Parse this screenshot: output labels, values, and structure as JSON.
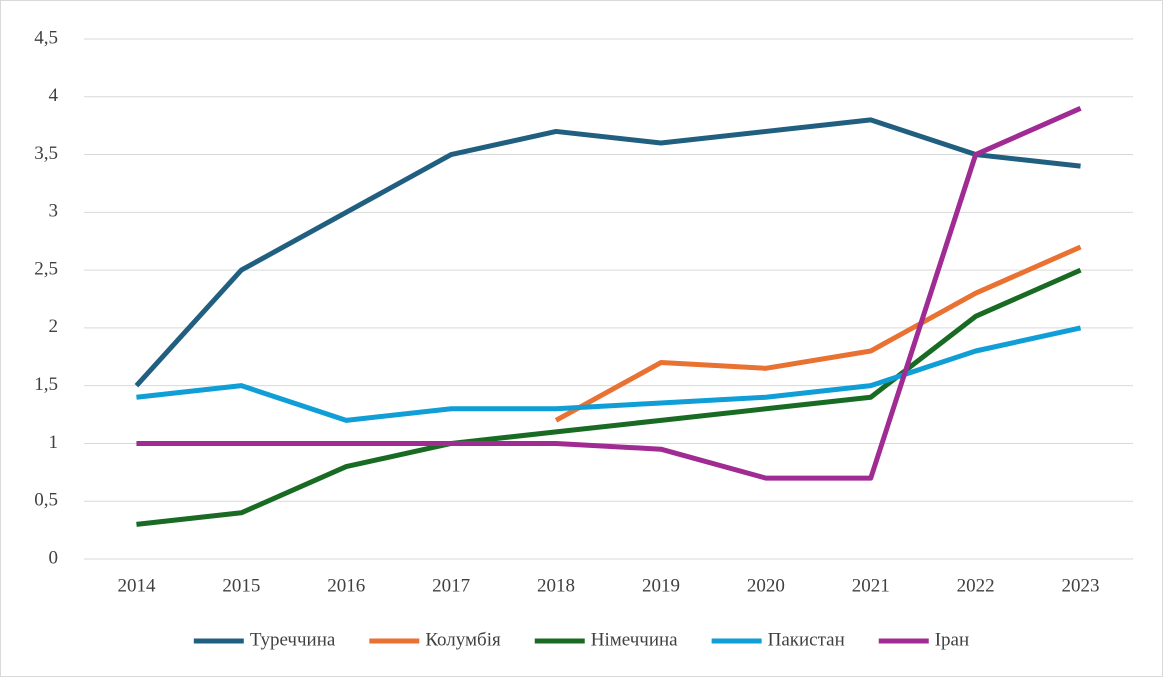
{
  "chart_data": {
    "type": "line",
    "categories": [
      "2014",
      "2015",
      "2016",
      "2017",
      "2018",
      "2019",
      "2020",
      "2021",
      "2022",
      "2023"
    ],
    "series": [
      {
        "name": "Туреччина",
        "color": "#215f80",
        "values": [
          1.5,
          2.5,
          3.0,
          3.5,
          3.7,
          3.6,
          3.7,
          3.8,
          3.5,
          3.4
        ]
      },
      {
        "name": "Колумбія",
        "color": "#e97132",
        "values": [
          null,
          null,
          null,
          null,
          1.2,
          1.7,
          1.65,
          1.8,
          2.3,
          2.7
        ]
      },
      {
        "name": "Німеччина",
        "color": "#196b24",
        "values": [
          0.3,
          0.4,
          0.8,
          1.0,
          1.1,
          1.2,
          1.3,
          1.4,
          2.1,
          2.5
        ]
      },
      {
        "name": "Пакистан",
        "color": "#0f9ed5",
        "values": [
          1.4,
          1.5,
          1.2,
          1.3,
          1.3,
          1.35,
          1.4,
          1.5,
          1.8,
          2.0
        ]
      },
      {
        "name": "Іран",
        "color": "#a02b93",
        "values": [
          1.0,
          1.0,
          1.0,
          1.0,
          1.0,
          0.95,
          0.7,
          0.7,
          3.5,
          3.9
        ]
      }
    ],
    "ylim": [
      0,
      4.5
    ],
    "yticks": [
      0,
      {
        "value": 0.5,
        "label": "0,5"
      },
      1,
      {
        "value": 1.5,
        "label": "1,5"
      },
      2,
      {
        "value": 2.5,
        "label": "2,5"
      },
      3,
      {
        "value": 3.5,
        "label": "3,5"
      },
      4,
      {
        "value": 4.5,
        "label": "4,5"
      }
    ],
    "grid": true,
    "legend": "bottom"
  }
}
